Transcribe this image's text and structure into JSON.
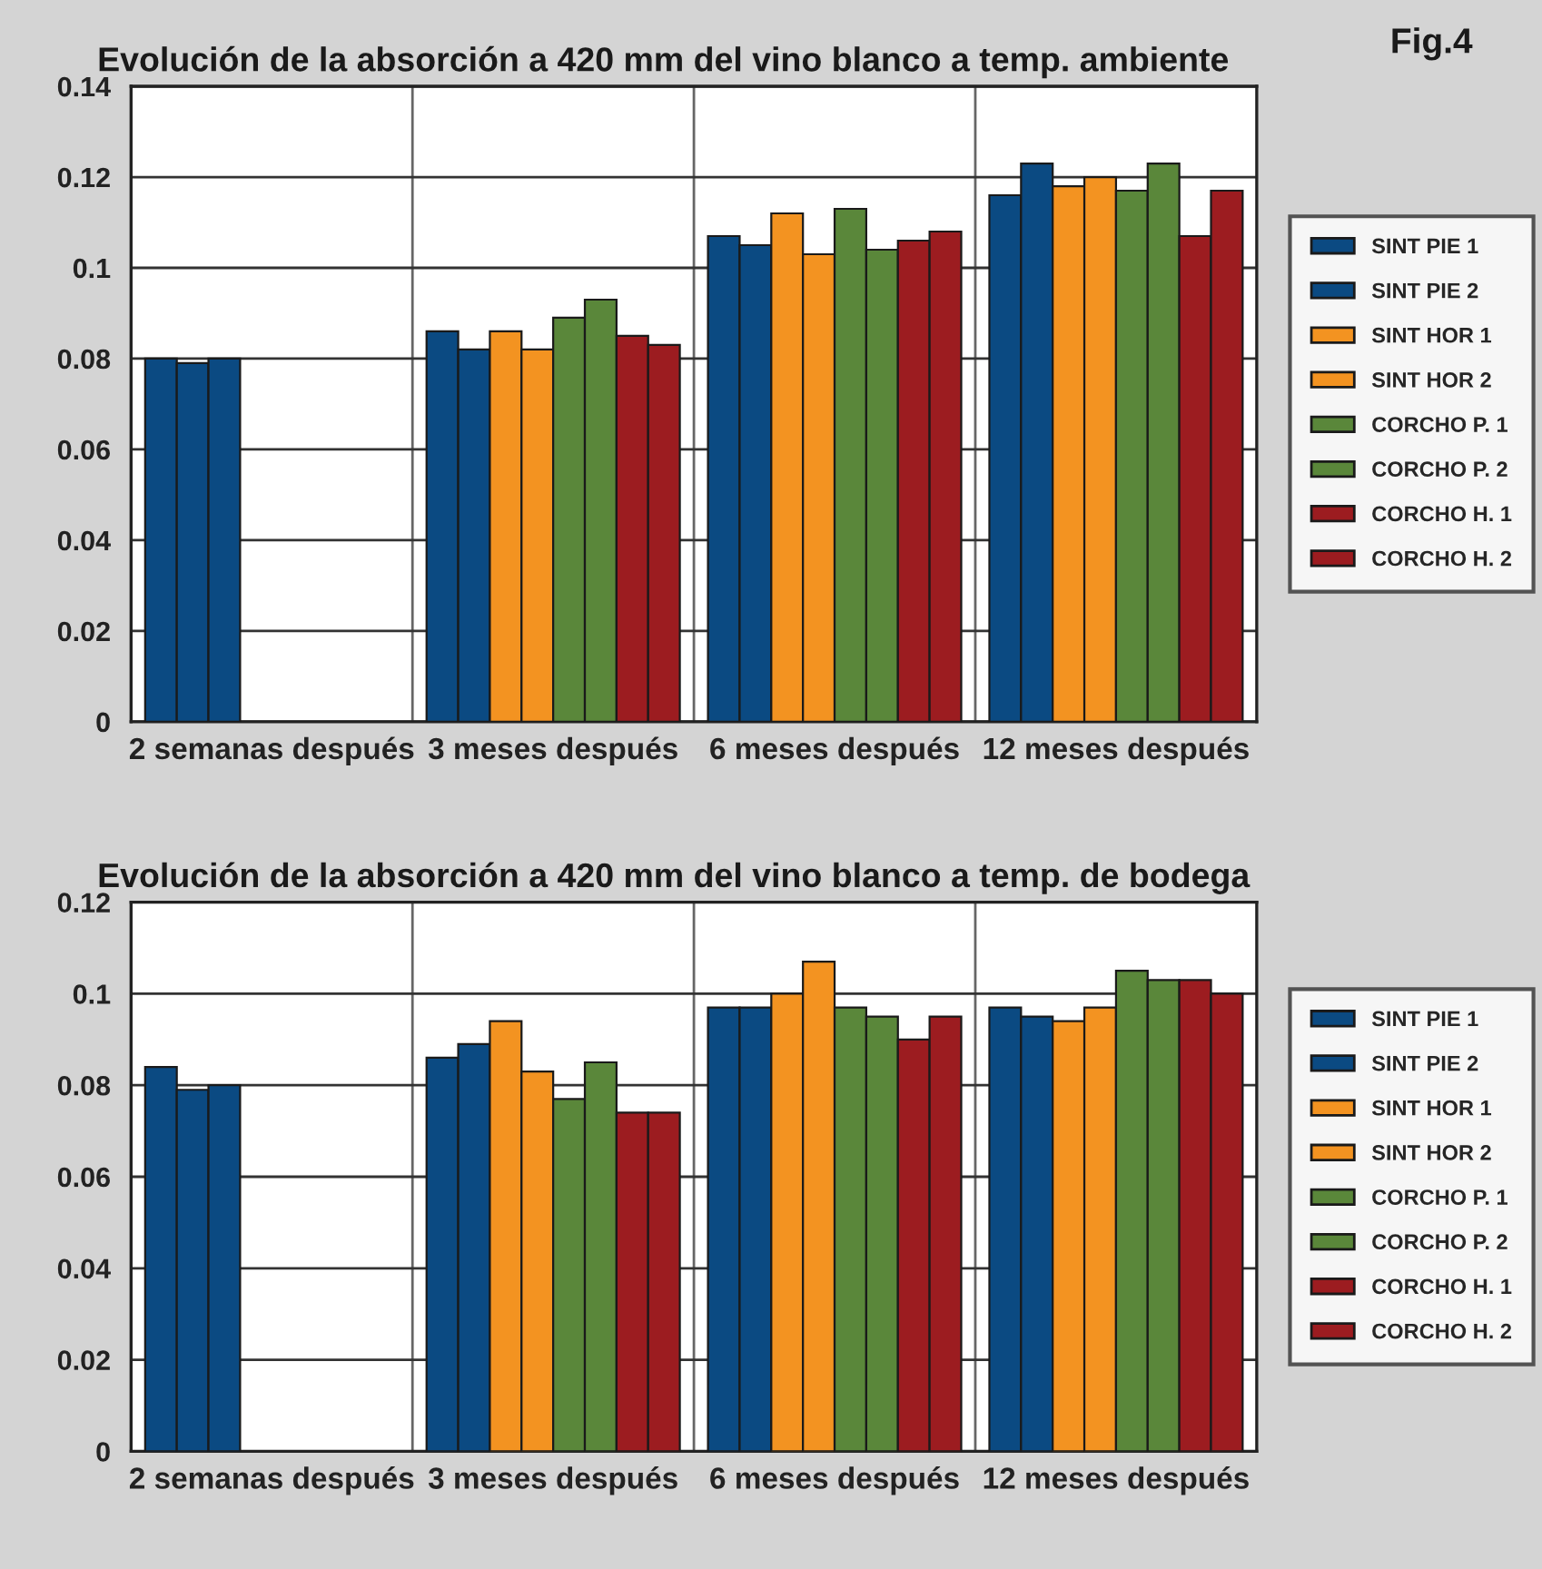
{
  "chart_data": [
    {
      "type": "bar",
      "title": "Evolución de la absorción a 420 mm del vino blanco a temp. ambiente",
      "categories": [
        "2 semanas después",
        "3 meses después",
        "6 meses después",
        "12 meses después"
      ],
      "series": [
        {
          "name": "SINT PIE 1",
          "color": "#0b4a82",
          "values": [
            0.08,
            0.086,
            0.107,
            0.116
          ]
        },
        {
          "name": "SINT PIE 2",
          "color": "#0b4a82",
          "values": [
            0.079,
            0.082,
            0.105,
            0.123
          ]
        },
        {
          "name": "SINT HOR 1",
          "color": "#f39321",
          "colors": [
            "#0b4a82",
            "#f39321",
            "#f39321",
            "#f39321"
          ],
          "values": [
            0.08,
            0.086,
            0.112,
            0.118
          ]
        },
        {
          "name": "SINT HOR 2",
          "color": "#f39321",
          "values": [
            null,
            0.082,
            0.103,
            0.12
          ]
        },
        {
          "name": "CORCHO P. 1",
          "color": "#5a873a",
          "values": [
            null,
            0.089,
            0.113,
            0.117
          ]
        },
        {
          "name": "CORCHO P. 2",
          "color": "#5a873a",
          "values": [
            null,
            0.093,
            0.104,
            0.123
          ]
        },
        {
          "name": "CORCHO H. 1",
          "color": "#9c1c20",
          "values": [
            null,
            0.085,
            0.106,
            0.107
          ]
        },
        {
          "name": "CORCHO H. 2",
          "color": "#9c1c20",
          "values": [
            null,
            0.083,
            0.108,
            0.117
          ]
        }
      ],
      "ylim": [
        0,
        0.14
      ],
      "yticks": [
        0,
        0.02,
        0.04,
        0.06,
        0.08,
        {
          "value": 0.1,
          "label": "0.1"
        },
        0.12,
        0.14
      ],
      "grid": true,
      "legend": "right",
      "annotations": [
        "Fig.4"
      ]
    },
    {
      "type": "bar",
      "title": "Evolución de la absorción a 420 mm del vino blanco a temp. de bodega",
      "categories": [
        "2 semanas después",
        "3 meses después",
        "6 meses después",
        "12 meses después"
      ],
      "series": [
        {
          "name": "SINT PIE 1",
          "color": "#0b4a82",
          "values": [
            0.084,
            0.086,
            0.097,
            0.097
          ]
        },
        {
          "name": "SINT PIE 2",
          "color": "#0b4a82",
          "values": [
            0.079,
            0.089,
            0.097,
            0.095
          ]
        },
        {
          "name": "SINT HOR 1",
          "color": "#f39321",
          "colors": [
            "#0b4a82",
            "#f39321",
            "#f39321",
            "#f39321"
          ],
          "values": [
            0.08,
            0.094,
            0.1,
            0.094
          ]
        },
        {
          "name": "SINT HOR 2",
          "color": "#f39321",
          "values": [
            null,
            0.083,
            0.107,
            0.097
          ]
        },
        {
          "name": "CORCHO P. 1",
          "color": "#5a873a",
          "values": [
            null,
            0.077,
            0.097,
            0.105
          ]
        },
        {
          "name": "CORCHO P. 2",
          "color": "#5a873a",
          "values": [
            null,
            0.085,
            0.095,
            0.103
          ]
        },
        {
          "name": "CORCHO H. 1",
          "color": "#9c1c20",
          "values": [
            null,
            0.074,
            0.09,
            0.103
          ]
        },
        {
          "name": "CORCHO H. 2",
          "color": "#9c1c20",
          "values": [
            null,
            0.074,
            0.095,
            0.1
          ]
        }
      ],
      "ylim": [
        0,
        0.12
      ],
      "yticks": [
        0,
        0.02,
        0.04,
        0.06,
        0.08,
        {
          "value": 0.1,
          "label": "0.1"
        },
        0.12
      ],
      "grid": true,
      "legend": "right"
    }
  ]
}
